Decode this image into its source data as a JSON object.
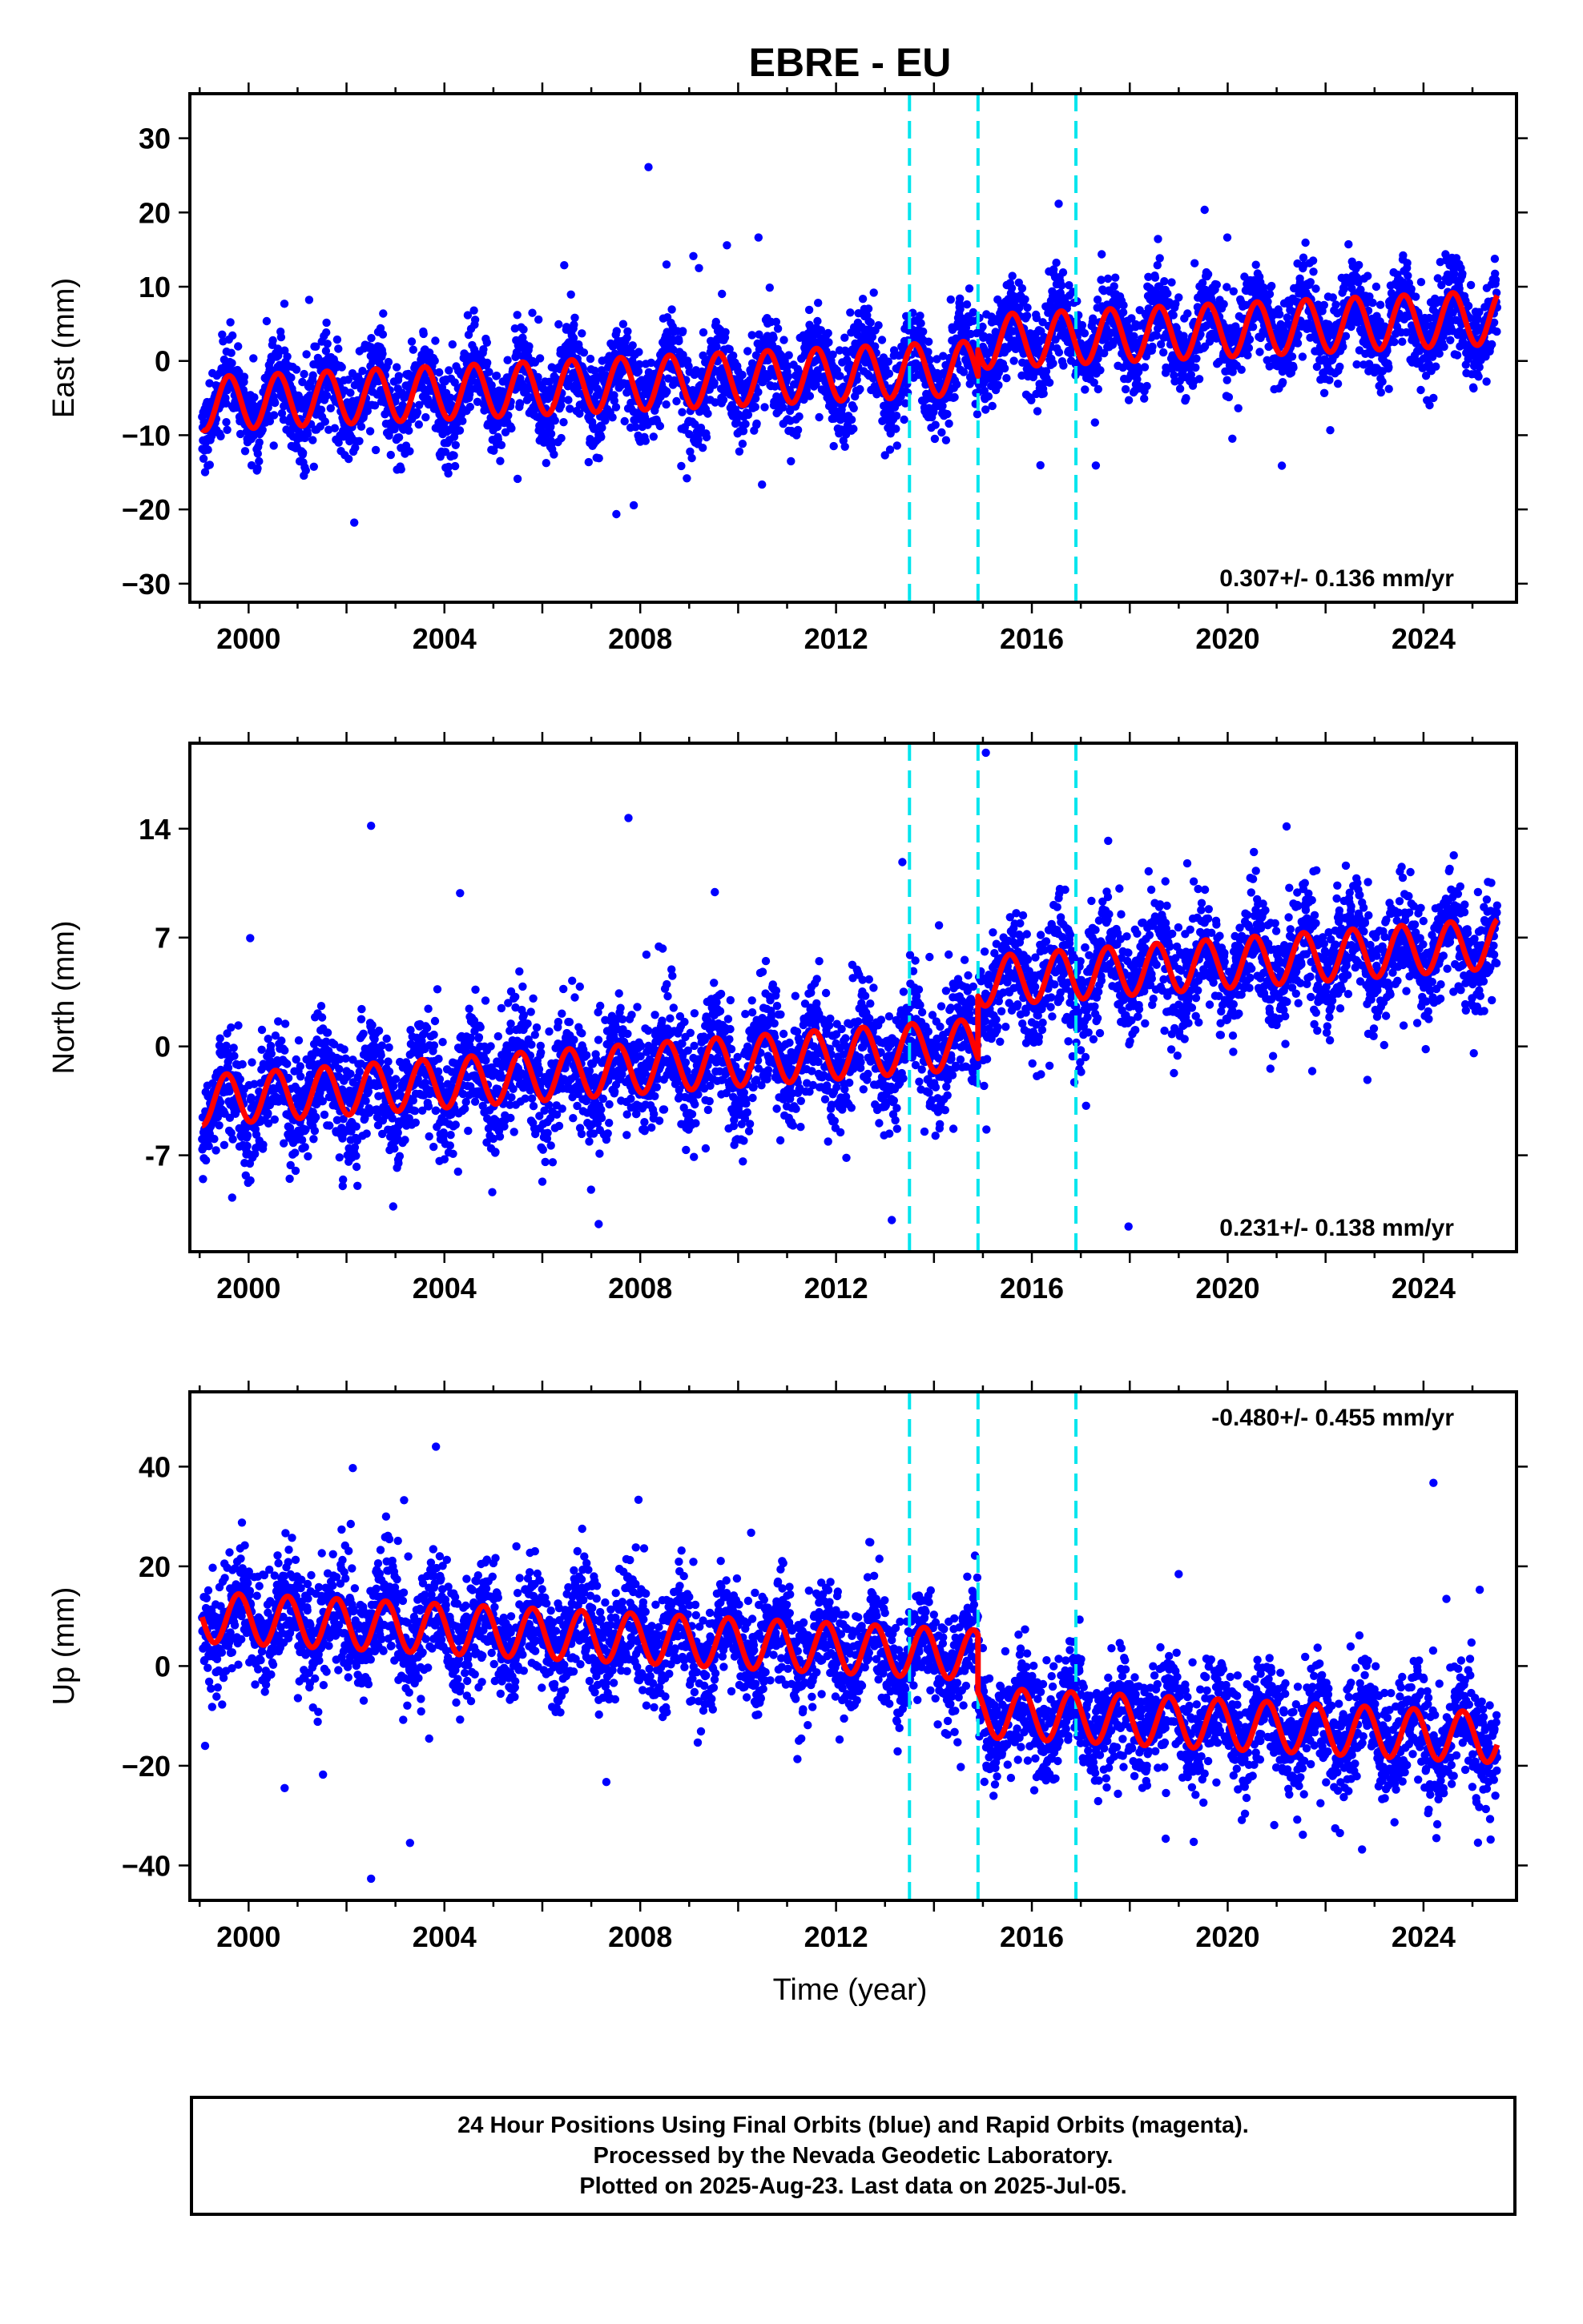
{
  "chart_data": {
    "type": "scatter",
    "title": "EBRE - EU",
    "xlabel": "Time (year)",
    "xlim": [
      1998.8,
      2025.9
    ],
    "x_ticks": [
      2000,
      2004,
      2008,
      2012,
      2016,
      2020,
      2024
    ],
    "x_tick_labels": [
      "2000",
      "2004",
      "2008",
      "2012",
      "2016",
      "2020",
      "2024"
    ],
    "data_start": 1999.05,
    "data_end": 2025.51,
    "offset_lines": [
      2013.5,
      2014.9,
      2016.9
    ],
    "colors": {
      "points": "#0000ff",
      "model": "#ff0000",
      "offsets": "#00e5ee",
      "frame": "#000000"
    },
    "panels": [
      {
        "name": "east",
        "ylabel": "East (mm)",
        "ylim": [
          -32.5,
          36
        ],
        "y_ticks": [
          -30,
          -20,
          -10,
          0,
          10,
          20,
          30
        ],
        "y_tick_labels": [
          "−30",
          "−20",
          "−10",
          "0",
          "10",
          "20",
          "30"
        ],
        "rate": "0.307+/- 0.136 mm/yr",
        "rate_position": "bottom-right",
        "model": {
          "intercept_2012": -1.8,
          "slope": 0.307,
          "amplitude": 3.6,
          "phase": 0.35,
          "steps": [
            {
              "year": 2014.9,
              "size": 3.5
            }
          ]
        },
        "scatter_sd": 3.0
      },
      {
        "name": "north",
        "ylabel": "North (mm)",
        "ylim": [
          -13.2,
          19.5
        ],
        "y_ticks": [
          -7,
          0,
          7,
          14
        ],
        "y_tick_labels": [
          "-7",
          "0",
          "7",
          "14"
        ],
        "rate": "0.231+/- 0.138 mm/yr",
        "rate_position": "bottom-right",
        "model": {
          "intercept_2012": -0.5,
          "slope": 0.231,
          "amplitude": 1.6,
          "phase": 0.3,
          "steps": [
            {
              "year": 2014.9,
              "size": 4.0
            }
          ]
        },
        "scatter_sd": 1.8
      },
      {
        "name": "up",
        "ylabel": "Up (mm)",
        "ylim": [
          -47,
          55
        ],
        "y_ticks": [
          -40,
          -20,
          0,
          20,
          40
        ],
        "y_tick_labels": [
          "−40",
          "−20",
          "0",
          "20",
          "40"
        ],
        "rate": "-0.480+/- 0.455 mm/yr",
        "rate_position": "top-right",
        "model": {
          "intercept_2012": 3.6,
          "slope": -0.48,
          "amplitude": 5.0,
          "phase": 0.55,
          "steps": [
            {
              "year": 2014.9,
              "size": -11.5
            }
          ]
        },
        "scatter_sd": 5.5
      }
    ]
  },
  "footer": {
    "line1": "24 Hour Positions Using Final Orbits (blue) and Rapid Orbits (magenta).",
    "line2": "Processed by the Nevada Geodetic Laboratory.",
    "line3": "Plotted on 2025-Aug-23. Last data on 2025-Jul-05."
  }
}
